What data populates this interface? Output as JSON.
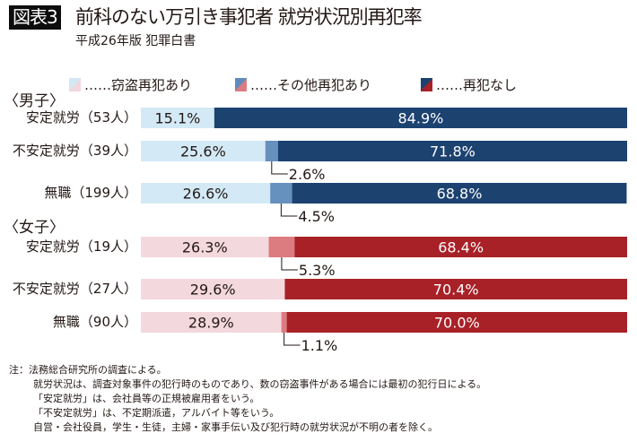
{
  "header": {
    "badge": "図表3",
    "title": "前科のない万引き事犯者  就労状況別再犯率",
    "subtitle": "平成26年版  犯罪白書"
  },
  "legend": [
    {
      "label": "……窃盗再犯あり",
      "icon": "light-swatch-icon",
      "colors": [
        "#d2e8f5",
        "#f2d7dc"
      ]
    },
    {
      "label": "……その他再犯あり",
      "icon": "medium-swatch-icon",
      "colors": [
        "#5f8cbd",
        "#de7b80"
      ]
    },
    {
      "label": "……再犯なし",
      "icon": "dark-swatch-icon",
      "colors": [
        "#1c4270",
        "#a82127"
      ]
    }
  ],
  "groups": [
    {
      "label": "〈男子〉"
    },
    {
      "label": "〈女子〉"
    }
  ],
  "colors": {
    "male": {
      "theft": "#d3e9f6",
      "other": "#6690bd",
      "none": "#1c4270"
    },
    "female": {
      "theft": "#f3d8dd",
      "other": "#dc7b80",
      "none": "#a82127"
    },
    "label_dark": "#231815",
    "label_light": "#ffffff"
  },
  "chart_data": {
    "type": "bar",
    "orientation": "horizontal",
    "stacked": true,
    "title": "前科のない万引き事犯者  就労状況別再犯率",
    "subtitle": "平成26年版  犯罪白書",
    "xlabel": "",
    "ylabel": "",
    "xlim": [
      0,
      100
    ],
    "unit": "%",
    "legend_position": "top",
    "grid": false,
    "categories": [
      "安定就労（53人）",
      "不安定就労（39人）",
      "無職（199人）",
      "安定就労（19人）",
      "不安定就労（27人）",
      "無職（90人）"
    ],
    "category_groups": [
      "男子",
      "男子",
      "男子",
      "女子",
      "女子",
      "女子"
    ],
    "series": [
      {
        "name": "窃盗再犯あり",
        "values": [
          15.1,
          25.6,
          26.6,
          26.3,
          29.6,
          28.9
        ]
      },
      {
        "name": "その他再犯あり",
        "values": [
          0.0,
          2.6,
          4.5,
          5.3,
          0.0,
          1.1
        ]
      },
      {
        "name": "再犯なし",
        "values": [
          84.9,
          71.8,
          68.8,
          68.4,
          70.4,
          70.0
        ]
      }
    ],
    "data_labels": [
      [
        "15.1%",
        "",
        "84.9%"
      ],
      [
        "25.6%",
        "2.6%",
        "71.8%"
      ],
      [
        "26.6%",
        "4.5%",
        "68.8%"
      ],
      [
        "26.3%",
        "5.3%",
        "68.4%"
      ],
      [
        "29.6%",
        "",
        "70.4%"
      ],
      [
        "28.9%",
        "1.1%",
        "70.0%"
      ]
    ]
  },
  "notes": [
    "注：法務総合研究所の調査による。",
    "就労状況は、調査対象事件の犯行時のものであり、数の窃盗事件がある場合には最初の犯行日による。",
    "「安定就労」は、会社員等の正規被雇用者をいう。",
    "「不安定就労」は、不定期派遣，アルバイト等をいう。",
    "自営・会社役員，学生・生徒，主婦・家事手伝い及び犯行時の就労状況が不明の者を除く。"
  ]
}
